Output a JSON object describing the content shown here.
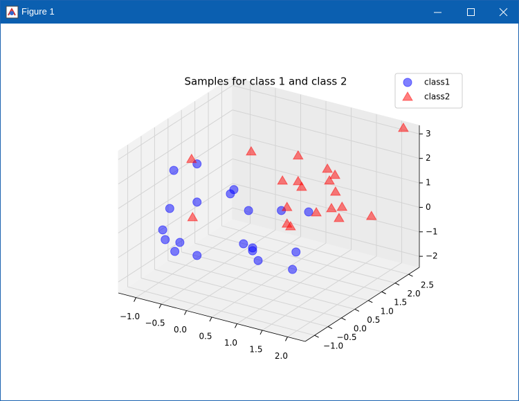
{
  "window": {
    "title": "Figure 1"
  },
  "chart_data": {
    "type": "scatter3d",
    "title": "Samples for class 1 and class 2",
    "xlim": [
      -1.35,
      2.35
    ],
    "ylim": [
      -1.35,
      2.9
    ],
    "zlim": [
      -2.45,
      3.35
    ],
    "xticks": [
      {
        "value": -1,
        "label": "−1.0"
      },
      {
        "value": -0.5,
        "label": "−0.5"
      },
      {
        "value": 0,
        "label": "0.0"
      },
      0.5,
      {
        "value": 1,
        "label": "1.0"
      },
      1.5,
      {
        "value": 2,
        "label": "2.0"
      }
    ],
    "yticks": [
      {
        "value": -1,
        "label": "−1.0"
      },
      {
        "value": -0.5,
        "label": "−0.5"
      },
      {
        "value": 0,
        "label": "0.0"
      },
      0.5,
      {
        "value": 1,
        "label": "1.0"
      },
      1.5,
      {
        "value": 2,
        "label": "2.0"
      },
      2.5
    ],
    "zticks": [
      {
        "value": -2,
        "label": "−2"
      },
      {
        "value": -1,
        "label": "−1"
      },
      0,
      1,
      2,
      3
    ],
    "grid": true,
    "legend": "upper right",
    "alpha": 0.5,
    "series": [
      {
        "name": "class1",
        "color": "#0000ff",
        "marker": "circle",
        "x": [
          -0.97,
          -0.51,
          0.22,
          0.15,
          -1.05,
          -0.51,
          0.51,
          1.16,
          1.7,
          -1.19,
          -1.14,
          -0.85,
          -0.95,
          -0.51,
          0.41,
          0.59,
          0.59,
          0.7,
          1.45,
          1.38
        ],
        "y": [
          0,
          0,
          0,
          0,
          0,
          0,
          0,
          0,
          0,
          0,
          0,
          0,
          0,
          0,
          0,
          0,
          0,
          0,
          0,
          0
        ],
        "z": [
          1.8,
          2.31,
          1.65,
          1.44,
          0.2,
          0.75,
          0.95,
          1.3,
          1.53,
          -0.75,
          -1.12,
          -1.08,
          -1.5,
          -1.43,
          -0.46,
          -0.53,
          -0.65,
          -0.99,
          -0.24,
          -0.99
        ]
      },
      {
        "name": "class2",
        "color": "#ff0000",
        "marker": "triangle",
        "x": [
          2.14,
          0.03,
          0.96,
          -1.15,
          1.54,
          1.69,
          1.58,
          0.65,
          0.96,
          1.03,
          1.7,
          0.74,
          1.62,
          1.83,
          1.32,
          1.77,
          1.88,
          0.74,
          0.81,
          -1.13
        ],
        "y": [
          2.7,
          1,
          1,
          1,
          1,
          1,
          1,
          1,
          1,
          1,
          1,
          1,
          1,
          1,
          1,
          1,
          2,
          1,
          1,
          1
        ],
        "z": [
          3.27,
          2.39,
          2.72,
          1.45,
          2.49,
          2.32,
          2.03,
          1.53,
          1.67,
          1.48,
          1.64,
          0.5,
          0.92,
          1.09,
          0.59,
          0.6,
          0.03,
          -0.18,
          -0.25,
          -0.92
        ]
      }
    ]
  }
}
